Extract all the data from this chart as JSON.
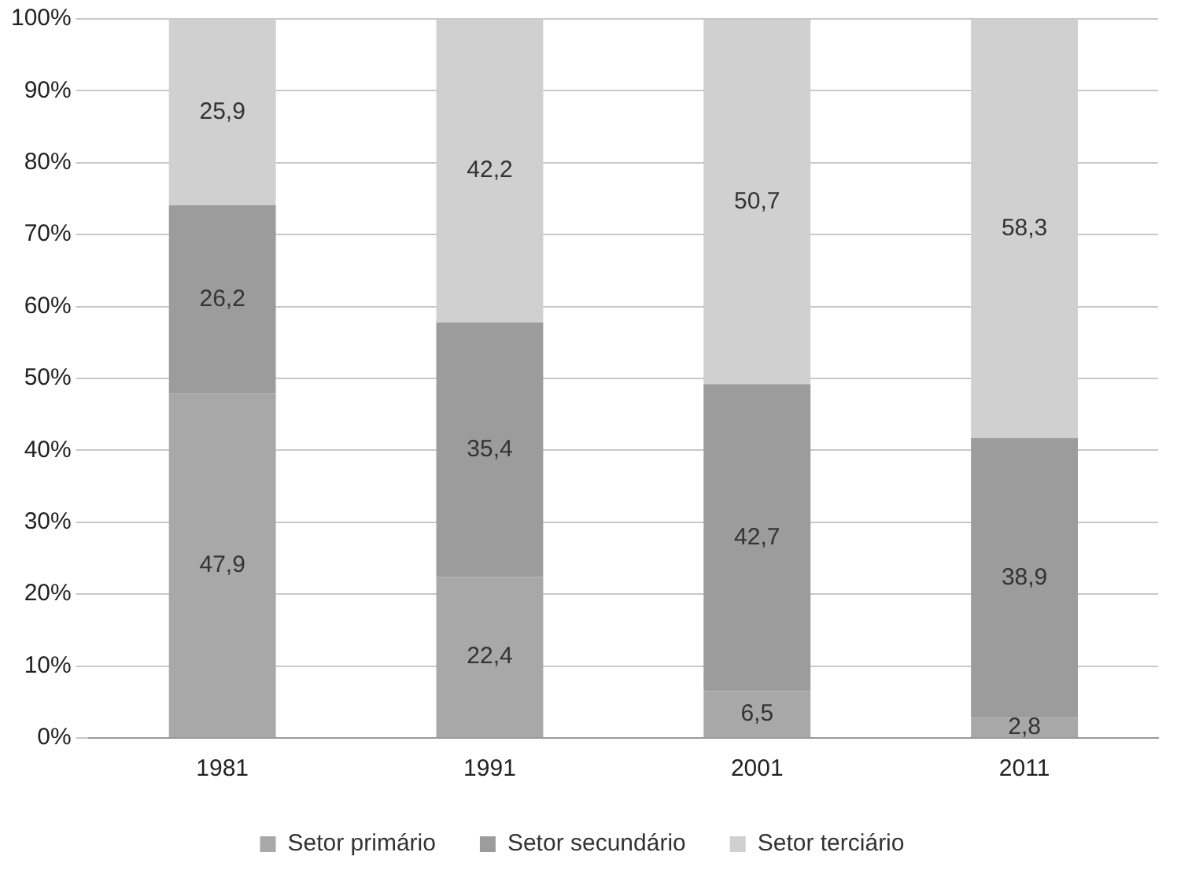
{
  "chart_data": {
    "type": "bar",
    "stacked": true,
    "categories": [
      "1981",
      "1991",
      "2001",
      "2011"
    ],
    "series": [
      {
        "name": "Setor primário",
        "color": "#a8a8a8",
        "values": [
          47.9,
          22.4,
          6.5,
          2.8
        ],
        "value_labels": [
          "47,9",
          "22,4",
          "6,5",
          "2,8"
        ]
      },
      {
        "name": "Setor secundário",
        "color": "#9c9c9c",
        "values": [
          26.2,
          35.4,
          42.7,
          38.9
        ],
        "value_labels": [
          "26,2",
          "35,4",
          "42,7",
          "38,9"
        ]
      },
      {
        "name": "Setor terciário",
        "color": "#d0d0d0",
        "values": [
          25.9,
          42.2,
          50.7,
          58.3
        ],
        "value_labels": [
          "25,9",
          "42,2",
          "50,7",
          "58,3"
        ]
      }
    ],
    "ylim": [
      0,
      100
    ],
    "yticks": [
      {
        "value": 0,
        "label": "0%"
      },
      {
        "value": 10,
        "label": "10%"
      },
      {
        "value": 20,
        "label": "20%"
      },
      {
        "value": 30,
        "label": "30%"
      },
      {
        "value": 40,
        "label": "40%"
      },
      {
        "value": 50,
        "label": "50%"
      },
      {
        "value": 60,
        "label": "60%"
      },
      {
        "value": 70,
        "label": "70%"
      },
      {
        "value": 80,
        "label": "80%"
      },
      {
        "value": 90,
        "label": "90%"
      },
      {
        "value": 100,
        "label": "100%"
      }
    ],
    "grid": "y",
    "legend": "bottom"
  }
}
